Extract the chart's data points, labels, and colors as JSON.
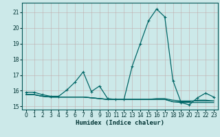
{
  "title": "",
  "xlabel": "Humidex (Indice chaleur)",
  "ylabel": "",
  "background_color": "#cce9e9",
  "line_color": "#006666",
  "grid_color": "#b0c8c8",
  "xlim": [
    -0.5,
    23.5
  ],
  "ylim": [
    14.8,
    21.6
  ],
  "yticks": [
    15,
    16,
    17,
    18,
    19,
    20,
    21
  ],
  "xticks": [
    0,
    1,
    2,
    3,
    4,
    5,
    6,
    7,
    8,
    9,
    10,
    11,
    12,
    13,
    14,
    15,
    16,
    17,
    18,
    19,
    20,
    21,
    22,
    23
  ],
  "x": [
    0,
    1,
    2,
    3,
    4,
    5,
    6,
    7,
    8,
    9,
    10,
    11,
    12,
    13,
    14,
    15,
    16,
    17,
    18,
    19,
    20,
    21,
    22,
    23
  ],
  "y_main": [
    15.9,
    15.9,
    15.75,
    15.65,
    15.65,
    16.05,
    16.55,
    17.2,
    15.95,
    16.3,
    15.5,
    15.45,
    15.45,
    17.55,
    19.0,
    20.45,
    21.2,
    20.7,
    16.65,
    15.25,
    15.1,
    15.55,
    15.85,
    15.6
  ],
  "y_extra1": [
    15.75,
    15.75,
    15.65,
    15.6,
    15.6,
    15.6,
    15.6,
    15.6,
    15.55,
    15.5,
    15.45,
    15.45,
    15.45,
    15.45,
    15.45,
    15.45,
    15.45,
    15.45,
    15.3,
    15.25,
    15.25,
    15.25,
    15.25,
    15.25
  ],
  "y_extra2": [
    15.75,
    15.75,
    15.65,
    15.6,
    15.6,
    15.6,
    15.6,
    15.6,
    15.55,
    15.5,
    15.45,
    15.45,
    15.45,
    15.45,
    15.45,
    15.45,
    15.45,
    15.45,
    15.3,
    15.3,
    15.3,
    15.4,
    15.4,
    15.35
  ],
  "y_extra3": [
    15.75,
    15.75,
    15.65,
    15.6,
    15.6,
    15.6,
    15.6,
    15.6,
    15.55,
    15.5,
    15.45,
    15.45,
    15.45,
    15.45,
    15.45,
    15.45,
    15.5,
    15.5,
    15.4,
    15.35,
    15.35,
    15.35,
    15.35,
    15.35
  ],
  "marker": "+",
  "markersize": 3.5,
  "linewidth": 0.9
}
